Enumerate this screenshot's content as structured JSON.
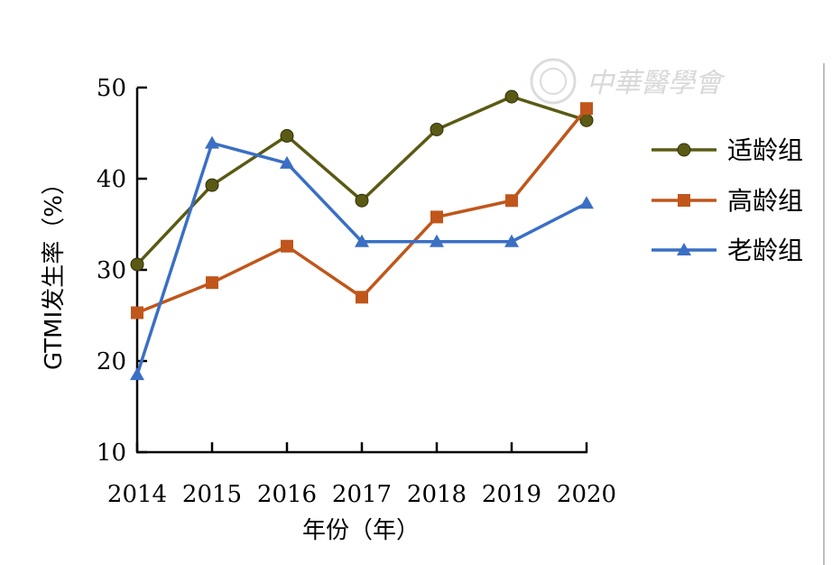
{
  "watermark": {
    "text": "中華醫學會"
  },
  "chart_data": {
    "type": "line",
    "title": "",
    "xlabel": "年份（年）",
    "ylabel": "GTMI发生率（%）",
    "x": [
      2014,
      2015,
      2016,
      2017,
      2018,
      2019,
      2020
    ],
    "ylim": [
      10,
      50
    ],
    "yticks": [
      10,
      20,
      30,
      40,
      50
    ],
    "grid": false,
    "legend_position": "right",
    "series": [
      {
        "name": "适龄组",
        "color": "#5a5a14",
        "marker": "circle",
        "values": [
          30.6,
          39.3,
          44.7,
          37.6,
          45.4,
          49.0,
          46.4
        ]
      },
      {
        "name": "高龄组",
        "color": "#c0561b",
        "marker": "square",
        "values": [
          25.3,
          28.6,
          32.6,
          27.0,
          35.8,
          37.6,
          47.7
        ]
      },
      {
        "name": "老龄组",
        "color": "#3a6fc4",
        "marker": "triangle",
        "values": [
          18.5,
          43.9,
          41.7,
          33.1,
          33.1,
          33.1,
          37.3
        ]
      }
    ]
  }
}
